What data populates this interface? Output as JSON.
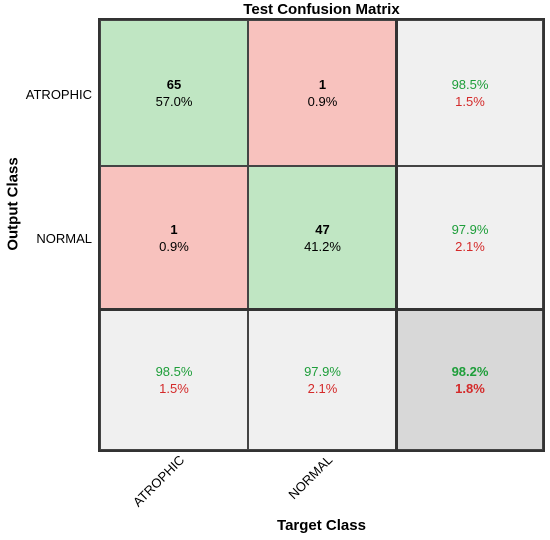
{
  "chart_data": {
    "type": "heatmap",
    "title": "Test Confusion Matrix",
    "xlabel": "Target Class",
    "ylabel": "Output Class",
    "classes": [
      "ATROPHIC",
      "NORMAL"
    ],
    "matrix": [
      [
        {
          "count": "65",
          "pct": "57.0%"
        },
        {
          "count": "1",
          "pct": "0.9%"
        }
      ],
      [
        {
          "count": "1",
          "pct": "0.9%"
        },
        {
          "count": "47",
          "pct": "41.2%"
        }
      ]
    ],
    "row_summary": [
      {
        "correct": "98.5%",
        "error": "1.5%"
      },
      {
        "correct": "97.9%",
        "error": "2.1%"
      }
    ],
    "col_summary": [
      {
        "correct": "98.5%",
        "error": "1.5%"
      },
      {
        "correct": "97.9%",
        "error": "2.1%"
      }
    ],
    "overall": {
      "correct": "98.2%",
      "error": "1.8%"
    },
    "colors": {
      "correct_cell": "#c0e6c3",
      "wrong_cell": "#f8c2be",
      "summary_cell": "#f0f0f0",
      "overall_cell": "#d8d8d8",
      "correct_text": "#1e9e3a",
      "error_text": "#d42a2a"
    }
  }
}
